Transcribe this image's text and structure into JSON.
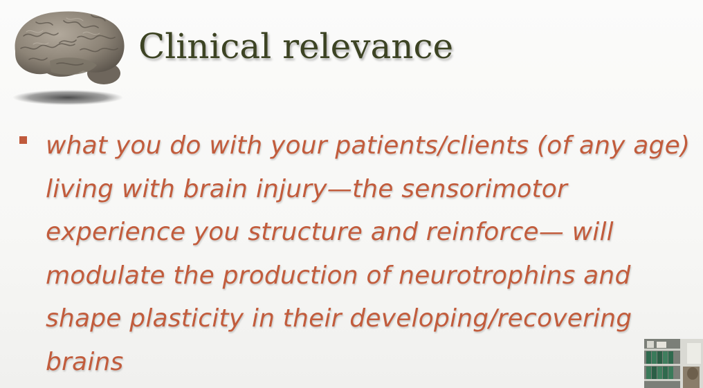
{
  "slide": {
    "title": "Clinical relevance",
    "bullets": [
      "what you do with your patients/clients (of any age) living with brain injury—the sensorimotor experience you structure and reinforce— will modulate the production of neurotrophins and shape plasticity in their developing/recovering brains"
    ]
  },
  "icons": {
    "illustration": "brain-icon",
    "bullet": "square-bullet-icon"
  },
  "colors": {
    "title": "#3c4323",
    "body_text": "#c25c3c",
    "bullet": "#c05a3c",
    "background": "#f7f7f5"
  }
}
